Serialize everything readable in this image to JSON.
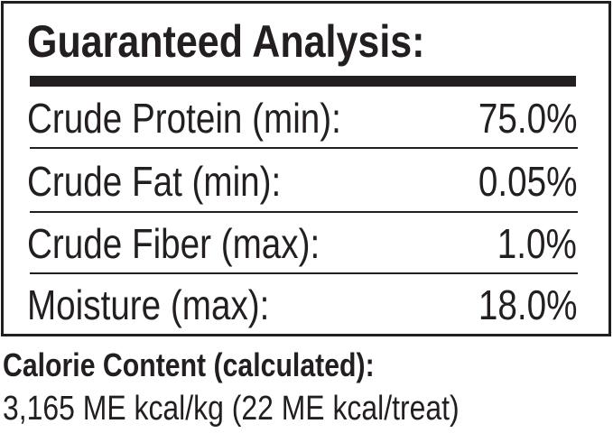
{
  "title": "Guaranteed Analysis:",
  "rows": [
    {
      "label": "Crude Protein (min):",
      "value": "75.0%"
    },
    {
      "label": "Crude Fat (min):",
      "value": "0.05%"
    },
    {
      "label": "Crude Fiber (max):",
      "value": "1.0%"
    },
    {
      "label": "Moisture (max):",
      "value": "18.0%"
    }
  ],
  "calorie": {
    "heading": "Calorie Content (calculated):",
    "value": "3,165 ME kcal/kg (22 ME kcal/treat)"
  }
}
